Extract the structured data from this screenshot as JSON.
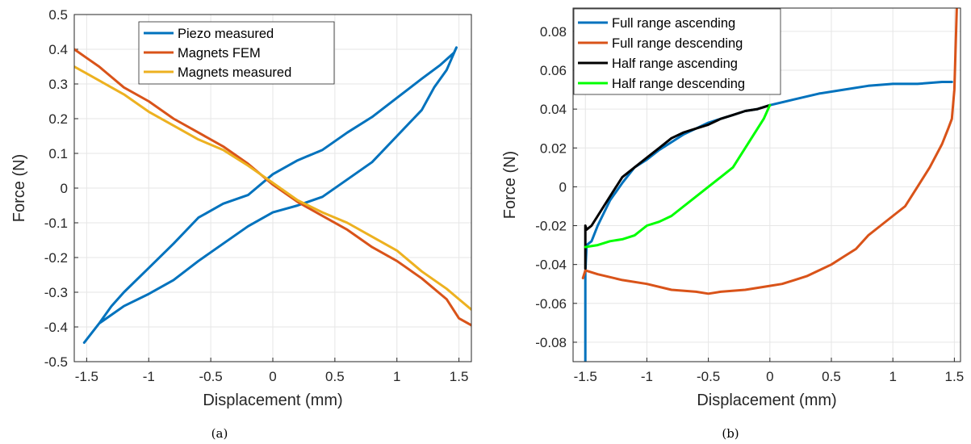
{
  "chart_data": [
    {
      "type": "line",
      "panel_label": "(a)",
      "title": "",
      "xlabel": "Displacement (mm)",
      "ylabel": "Force (N)",
      "xlim": [
        -1.6,
        1.6
      ],
      "ylim": [
        -0.5,
        0.5
      ],
      "xticks": [
        -1.5,
        -1,
        -0.5,
        0,
        0.5,
        1,
        1.5
      ],
      "xtick_labels": [
        "-1.5",
        "-1",
        "-0.5",
        "0",
        "0.5",
        "1",
        "1.5"
      ],
      "yticks": [
        -0.5,
        -0.4,
        -0.3,
        -0.2,
        -0.1,
        0,
        0.1,
        0.2,
        0.3,
        0.4,
        0.5
      ],
      "ytick_labels": [
        "-0.5",
        "-0.4",
        "-0.3",
        "-0.2",
        "-0.1",
        "0",
        "0.1",
        "0.2",
        "0.3",
        "0.4",
        "0.5"
      ],
      "grid": true,
      "legend_position": "top-center",
      "series": [
        {
          "name": "Piezo measured",
          "color": "#0072BD",
          "x": [
            -1.52,
            -1.4,
            -1.3,
            -1.2,
            -1.0,
            -0.8,
            -0.6,
            -0.4,
            -0.2,
            0.0,
            0.2,
            0.4,
            0.6,
            0.8,
            1.0,
            1.2,
            1.35,
            1.46,
            1.48,
            1.4,
            1.3,
            1.2,
            1.0,
            0.8,
            0.6,
            0.4,
            0.2,
            0.0,
            -0.2,
            -0.4,
            -0.6,
            -0.8,
            -1.0,
            -1.2,
            -1.4,
            -1.52
          ],
          "y": [
            -0.445,
            -0.39,
            -0.34,
            -0.3,
            -0.23,
            -0.16,
            -0.085,
            -0.045,
            -0.02,
            0.04,
            0.08,
            0.11,
            0.16,
            0.205,
            0.26,
            0.315,
            0.355,
            0.39,
            0.405,
            0.34,
            0.29,
            0.225,
            0.15,
            0.075,
            0.025,
            -0.025,
            -0.05,
            -0.07,
            -0.11,
            -0.16,
            -0.21,
            -0.265,
            -0.305,
            -0.34,
            -0.39,
            -0.445
          ]
        },
        {
          "name": "Magnets FEM",
          "color": "#D95319",
          "x": [
            -1.6,
            -1.5,
            -1.4,
            -1.3,
            -1.2,
            -1.0,
            -0.8,
            -0.6,
            -0.4,
            -0.2,
            0.0,
            0.2,
            0.4,
            0.6,
            0.8,
            1.0,
            1.2,
            1.4,
            1.5,
            1.6
          ],
          "y": [
            0.4,
            0.375,
            0.35,
            0.32,
            0.29,
            0.25,
            0.2,
            0.16,
            0.12,
            0.07,
            0.01,
            -0.04,
            -0.08,
            -0.12,
            -0.17,
            -0.21,
            -0.26,
            -0.32,
            -0.375,
            -0.395
          ]
        },
        {
          "name": "Magnets measured",
          "color": "#EDB120",
          "x": [
            -1.6,
            -1.5,
            -1.4,
            -1.3,
            -1.2,
            -1.0,
            -0.8,
            -0.6,
            -0.4,
            -0.2,
            0.0,
            0.2,
            0.4,
            0.6,
            0.8,
            1.0,
            1.2,
            1.4,
            1.5,
            1.6
          ],
          "y": [
            0.35,
            0.33,
            0.31,
            0.29,
            0.27,
            0.22,
            0.18,
            0.14,
            0.11,
            0.065,
            0.015,
            -0.035,
            -0.07,
            -0.1,
            -0.14,
            -0.18,
            -0.24,
            -0.29,
            -0.32,
            -0.35
          ]
        }
      ]
    },
    {
      "type": "line",
      "panel_label": "(b)",
      "title": "",
      "xlabel": "Displacement (mm)",
      "ylabel": "Force (N)",
      "xlim": [
        -1.6,
        1.55
      ],
      "ylim": [
        -0.09,
        0.092
      ],
      "xticks": [
        -1.5,
        -1,
        -0.5,
        0,
        0.5,
        1,
        1.5
      ],
      "xtick_labels": [
        "-1.5",
        "-1",
        "-0.5",
        "0",
        "0.5",
        "1",
        "1.5"
      ],
      "yticks": [
        -0.08,
        -0.06,
        -0.04,
        -0.02,
        0,
        0.02,
        0.04,
        0.06,
        0.08
      ],
      "ytick_labels": [
        "-0.08",
        "-0.06",
        "-0.04",
        "-0.02",
        "0",
        "0.02",
        "0.04",
        "0.06",
        "0.08"
      ],
      "grid": true,
      "legend_position": "top-left",
      "series": [
        {
          "name": "Full range ascending",
          "color": "#0072BD",
          "x": [
            -1.5,
            -1.5,
            -1.49,
            -1.45,
            -1.4,
            -1.3,
            -1.2,
            -1.1,
            -1.0,
            -0.9,
            -0.8,
            -0.7,
            -0.6,
            -0.5,
            -0.4,
            -0.3,
            -0.2,
            -0.1,
            0.0,
            0.2,
            0.4,
            0.6,
            0.8,
            1.0,
            1.2,
            1.4,
            1.48
          ],
          "y": [
            -0.09,
            -0.044,
            -0.03,
            -0.028,
            -0.02,
            -0.007,
            0.002,
            0.01,
            0.014,
            0.019,
            0.023,
            0.027,
            0.03,
            0.033,
            0.035,
            0.037,
            0.039,
            0.04,
            0.042,
            0.045,
            0.048,
            0.05,
            0.052,
            0.053,
            0.053,
            0.054,
            0.054
          ]
        },
        {
          "name": "Full range descending",
          "color": "#D95319",
          "x": [
            1.52,
            1.5,
            1.48,
            1.45,
            1.4,
            1.3,
            1.2,
            1.1,
            1.0,
            0.9,
            0.8,
            0.7,
            0.6,
            0.5,
            0.4,
            0.3,
            0.2,
            0.1,
            0.0,
            -0.2,
            -0.4,
            -0.5,
            -0.6,
            -0.8,
            -1.0,
            -1.2,
            -1.4,
            -1.5,
            -1.52
          ],
          "y": [
            0.092,
            0.05,
            0.035,
            0.03,
            0.022,
            0.01,
            0.0,
            -0.01,
            -0.015,
            -0.02,
            -0.025,
            -0.032,
            -0.036,
            -0.04,
            -0.043,
            -0.046,
            -0.048,
            -0.05,
            -0.051,
            -0.053,
            -0.054,
            -0.055,
            -0.054,
            -0.053,
            -0.05,
            -0.048,
            -0.045,
            -0.043,
            -0.047
          ]
        },
        {
          "name": "Half range ascending",
          "color": "#000000",
          "x": [
            -1.5,
            -1.5,
            -1.49,
            -1.45,
            -1.4,
            -1.3,
            -1.2,
            -1.1,
            -1.0,
            -0.9,
            -0.8,
            -0.7,
            -0.6,
            -0.5,
            -0.4,
            -0.3,
            -0.2,
            -0.1,
            0.0
          ],
          "y": [
            -0.042,
            -0.02,
            -0.022,
            -0.02,
            -0.015,
            -0.005,
            0.005,
            0.01,
            0.015,
            0.02,
            0.025,
            0.028,
            0.03,
            0.032,
            0.035,
            0.037,
            0.039,
            0.04,
            0.042
          ]
        },
        {
          "name": "Half range descending",
          "color": "#00FF00",
          "x": [
            0.0,
            -0.05,
            -0.1,
            -0.2,
            -0.3,
            -0.4,
            -0.5,
            -0.6,
            -0.7,
            -0.8,
            -0.9,
            -1.0,
            -1.1,
            -1.2,
            -1.3,
            -1.4,
            -1.5
          ],
          "y": [
            0.042,
            0.035,
            0.03,
            0.02,
            0.01,
            0.005,
            0.0,
            -0.005,
            -0.01,
            -0.015,
            -0.018,
            -0.02,
            -0.025,
            -0.027,
            -0.028,
            -0.03,
            -0.031
          ]
        }
      ]
    }
  ]
}
